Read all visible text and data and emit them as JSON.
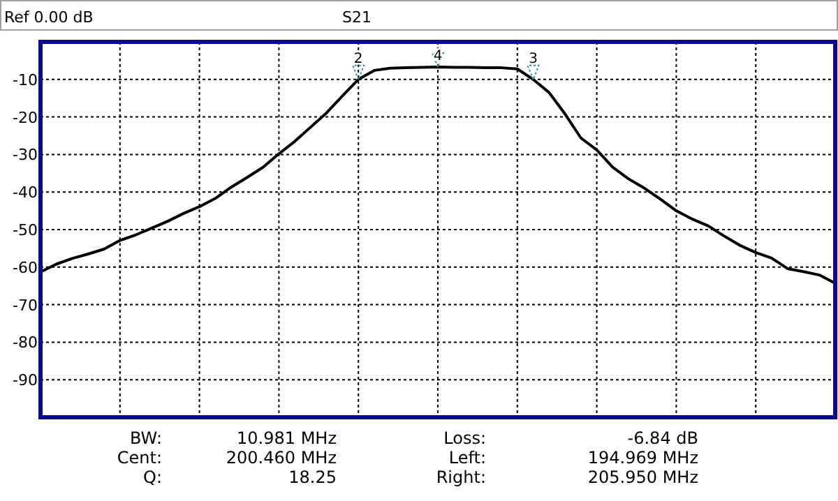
{
  "chart_data": {
    "type": "line",
    "title": "S21",
    "subtitle": "Ref 0.00 dB",
    "categories": [
      null,
      null,
      null,
      null,
      null,
      null,
      null,
      null,
      null,
      null,
      null,
      null,
      null,
      null,
      null,
      null,
      null,
      null,
      null,
      null,
      null,
      null,
      null,
      null,
      null,
      null,
      null,
      null,
      null,
      null,
      null,
      null,
      null,
      null,
      null,
      null,
      null,
      null,
      null,
      null,
      null,
      null,
      null,
      null,
      null,
      null,
      null,
      null,
      null,
      null,
      null
    ],
    "series": [
      {
        "color": "#000000",
        "values": [
          -61.3,
          -59.2,
          -57.7,
          -56.5,
          -55.2,
          -52.9,
          -51.4,
          -49.6,
          -47.8,
          -45.7,
          -43.9,
          -41.7,
          -38.7,
          -36.1,
          -33.4,
          -29.8,
          -26.5,
          -22.7,
          -18.9,
          -14.4,
          -10,
          -7.6,
          -7,
          -6.9,
          -6.8,
          -6.7,
          -6.8,
          -6.8,
          -6.9,
          -6.9,
          -7.2,
          -10,
          -13.5,
          -19.2,
          -25.6,
          -28.8,
          -33.4,
          -36.5,
          -39,
          -41.9,
          -45,
          -47.2,
          -49,
          -51.7,
          -54.2,
          -56.1,
          -57.6,
          -60.4,
          -61.2,
          -62.1,
          -64.3
        ]
      }
    ],
    "ylim": [
      -100,
      0
    ],
    "yticks": [
      -10,
      -20,
      -30,
      -40,
      -50,
      -60,
      -70,
      -80,
      -90
    ],
    "tick_labels": "y",
    "grid": true,
    "marker": "none",
    "line_style": "solid",
    "annotations": [
      {
        "text": "2",
        "y": -10
      },
      {
        "text": "3",
        "y": -10
      },
      {
        "text": "4",
        "y": -6.7
      },
      "BW: 10.981 MHz",
      "Cent: 200.460 MHz",
      "Q: 18.25",
      "Loss: -6.84 dB",
      "Left: 194.969 MHz",
      "Right: 205.950 MHz"
    ]
  }
}
